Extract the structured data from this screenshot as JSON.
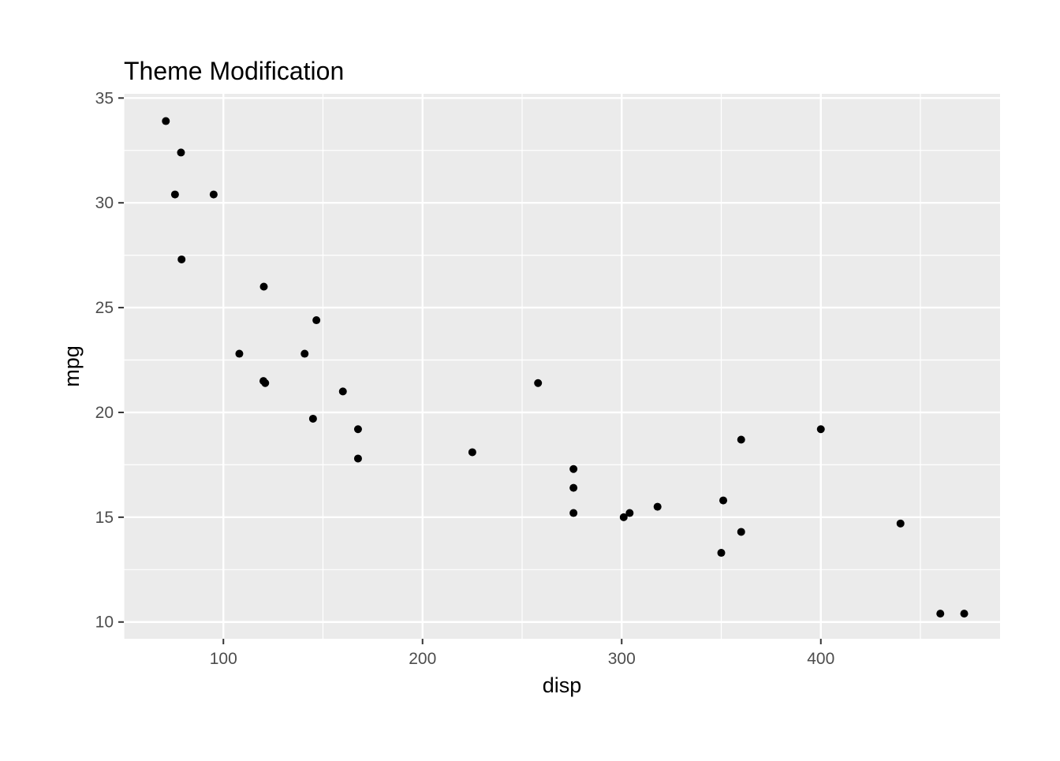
{
  "chart_data": {
    "type": "scatter",
    "title": "Theme Modification",
    "xlabel": "disp",
    "ylabel": "mpg",
    "xlim": [
      50,
      490
    ],
    "ylim": [
      9.2,
      35.2
    ],
    "x_ticks": [
      100,
      200,
      300,
      400
    ],
    "y_ticks": [
      10,
      15,
      20,
      25,
      30,
      35
    ],
    "x_minor": [
      50,
      150,
      250,
      350,
      450
    ],
    "y_minor": [
      12.5,
      17.5,
      22.5,
      27.5,
      32.5
    ],
    "grid": true,
    "panel_background": "#ebebeb",
    "grid_color": "#ffffff",
    "point_color": "#000000",
    "points": [
      {
        "x": 71.1,
        "y": 33.9
      },
      {
        "x": 78.7,
        "y": 32.4
      },
      {
        "x": 75.7,
        "y": 30.4
      },
      {
        "x": 95.1,
        "y": 30.4
      },
      {
        "x": 79.0,
        "y": 27.3
      },
      {
        "x": 120.3,
        "y": 26.0
      },
      {
        "x": 146.7,
        "y": 24.4
      },
      {
        "x": 108.0,
        "y": 22.8
      },
      {
        "x": 140.8,
        "y": 22.8
      },
      {
        "x": 120.1,
        "y": 21.5
      },
      {
        "x": 121.0,
        "y": 21.4
      },
      {
        "x": 258.0,
        "y": 21.4
      },
      {
        "x": 160.0,
        "y": 21.0
      },
      {
        "x": 145.0,
        "y": 19.7
      },
      {
        "x": 167.6,
        "y": 19.2
      },
      {
        "x": 400.0,
        "y": 19.2
      },
      {
        "x": 360.0,
        "y": 18.7
      },
      {
        "x": 225.0,
        "y": 18.1
      },
      {
        "x": 167.6,
        "y": 17.8
      },
      {
        "x": 275.8,
        "y": 17.3
      },
      {
        "x": 275.8,
        "y": 16.4
      },
      {
        "x": 351.0,
        "y": 15.8
      },
      {
        "x": 318.0,
        "y": 15.5
      },
      {
        "x": 275.8,
        "y": 15.2
      },
      {
        "x": 304.0,
        "y": 15.2
      },
      {
        "x": 301.0,
        "y": 15.0
      },
      {
        "x": 440.0,
        "y": 14.7
      },
      {
        "x": 360.0,
        "y": 14.3
      },
      {
        "x": 350.0,
        "y": 13.3
      },
      {
        "x": 460.0,
        "y": 10.4
      },
      {
        "x": 472.0,
        "y": 10.4
      }
    ]
  }
}
